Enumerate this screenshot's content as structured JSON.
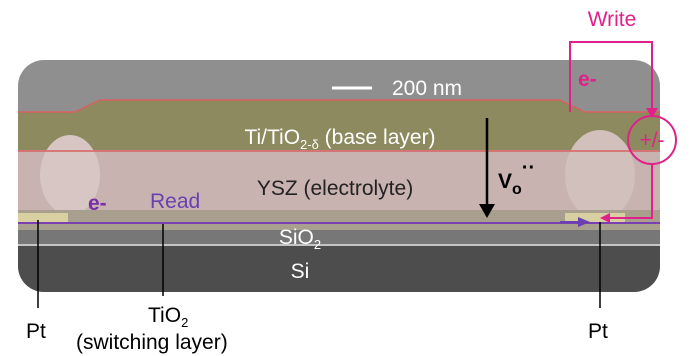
{
  "circuit": {
    "write": "Write",
    "electron_right": "e-",
    "source": "+/-"
  },
  "scale_bar": "200 nm",
  "layers": {
    "base": {
      "main": "Ti/TiO",
      "sub": "2-δ",
      "rest": " (base layer)"
    },
    "electrolyte": "YSZ (electrolyte)",
    "oxide": {
      "main": "SiO",
      "sub": "2"
    },
    "substrate": "Si"
  },
  "vacancy": {
    "main": "V",
    "sub": "o",
    "sup": "··"
  },
  "read": {
    "electron_left": "e-",
    "label": "Read"
  },
  "labels": {
    "pt_left": "Pt",
    "pt_right": "Pt",
    "switching": {
      "main": "TiO",
      "sub": "2",
      "rest": "(switching layer)"
    }
  }
}
